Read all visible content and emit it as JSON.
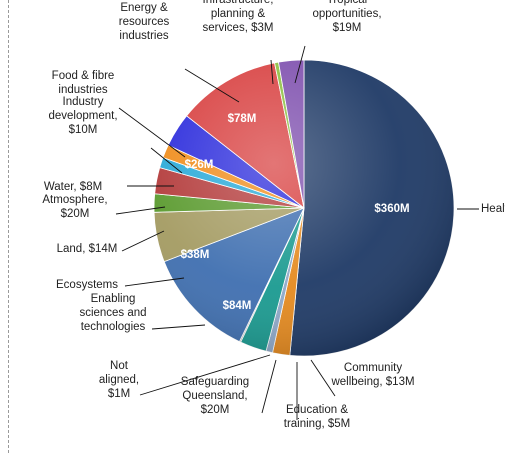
{
  "chart_data": {
    "type": "pie",
    "title": "",
    "unit": "$M",
    "slices": [
      {
        "name": "Health",
        "value": 360,
        "color": "#1f3a66",
        "value_label": "$360M",
        "label_lines": [
          "Health"
        ]
      },
      {
        "name": "Community wellbeing",
        "value": 13,
        "color": "#e58a1f",
        "label_lines": [
          "Community",
          "wellbeing, $13M"
        ]
      },
      {
        "name": "Education & training",
        "value": 5,
        "color": "#8fa9c9",
        "label_lines": [
          "Education &",
          "training, $5M"
        ]
      },
      {
        "name": "Safeguarding Queensland",
        "value": 20,
        "color": "#1a9a90",
        "label_lines": [
          "Safeguarding",
          "Queensland,",
          "$20M"
        ]
      },
      {
        "name": "Not aligned",
        "value": 1,
        "color": "#bfbfbf",
        "label_lines": [
          "Not",
          "aligned,",
          "$1M"
        ]
      },
      {
        "name": "Enabling sciences and technologies",
        "value": 84,
        "color": "#3f6fb0",
        "value_label": "$84M",
        "label_lines": [
          "Enabling",
          "sciences and",
          "technologies"
        ]
      },
      {
        "name": "Ecosystems",
        "value": 38,
        "color": "#a49b62",
        "value_label": "$38M",
        "label_lines": [
          "Ecosystems"
        ]
      },
      {
        "name": "Land",
        "value": 14,
        "color": "#5a9a2e",
        "label_lines": [
          "Land, $14M"
        ]
      },
      {
        "name": "Atmosphere",
        "value": 20,
        "color": "#b33a3a",
        "label_lines": [
          "Atmosphere,",
          "$20M"
        ]
      },
      {
        "name": "Water",
        "value": 8,
        "color": "#27a9d8",
        "label_lines": [
          "Water, $8M"
        ]
      },
      {
        "name": "Industry development",
        "value": 10,
        "color": "#f08c1a",
        "label_lines": [
          "Industry",
          "development,",
          "$10M"
        ]
      },
      {
        "name": "Food & fibre industries",
        "value": 26,
        "color": "#2b2bdc",
        "value_label": "$26M",
        "label_lines": [
          "Food & fibre",
          "industries"
        ]
      },
      {
        "name": "Energy & resources industries",
        "value": 78,
        "color": "#d84040",
        "value_label": "$78M",
        "label_lines": [
          "Energy &",
          "resources",
          "industries"
        ]
      },
      {
        "name": "Infrastructure, planning & services",
        "value": 3,
        "color": "#8cbf3f",
        "label_lines": [
          "Infrastructure,",
          "planning &",
          "services, $3M"
        ]
      },
      {
        "name": "Tropical opportunities",
        "value": 19,
        "color": "#7e4fae",
        "label_lines": [
          "Tropical",
          "opportunities,",
          "$19M"
        ]
      }
    ]
  }
}
